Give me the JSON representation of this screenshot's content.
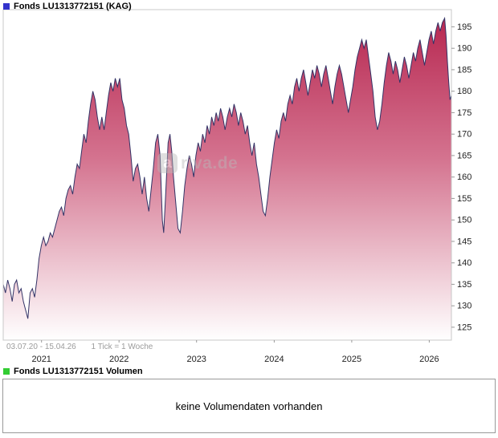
{
  "title": "Fonds LU1313772151 (KAG)",
  "price_chart": {
    "legend_label": "Fonds LU1313772151 (KAG)",
    "date_range": "03.07.20 - 15.04.26",
    "tick_info": "1 Tick = 1 Woche"
  },
  "volume_chart": {
    "legend_label": "Fonds LU1313772151 Volumen",
    "message": "keine Volumendaten vorhanden"
  },
  "watermark": {
    "logo_letter": "a",
    "text": "riva.de"
  },
  "colors": {
    "price_line": "#333366",
    "area_top": "#b6244e",
    "area_mid": "#d4738f",
    "area_bottom": "#ffffff",
    "frame": "#c8c8c8",
    "tick": "#999999",
    "axis_text": "#222222",
    "range_text": "#9b9b9b",
    "legend_price": "#3333cc",
    "legend_volume": "#33cc33"
  },
  "chart_data": {
    "type": "area",
    "title": "Fonds LU1313772151 (KAG)",
    "x_unit": "week",
    "date_start": "03.07.20",
    "date_end": "15.04.26",
    "tick_interval": "1 Tick = 1 Woche",
    "grid": false,
    "legend_position": "top-left",
    "ylim": [
      122,
      199
    ],
    "yticks": [
      125,
      130,
      135,
      140,
      145,
      150,
      155,
      160,
      165,
      170,
      175,
      180,
      185,
      190,
      195
    ],
    "xticks": [
      {
        "label": "2021",
        "f": 0.0854
      },
      {
        "label": "2022",
        "f": 0.2584
      },
      {
        "label": "2023",
        "f": 0.4313
      },
      {
        "label": "2024",
        "f": 0.6047
      },
      {
        "label": "2025",
        "f": 0.7776
      },
      {
        "label": "2026",
        "f": 0.9506
      }
    ],
    "series": [
      {
        "name": "Fonds LU1313772151 (KAG)",
        "points": [
          [
            0.0,
            135
          ],
          [
            0.005,
            133
          ],
          [
            0.01,
            136
          ],
          [
            0.015,
            134
          ],
          [
            0.02,
            131
          ],
          [
            0.025,
            135
          ],
          [
            0.03,
            136
          ],
          [
            0.035,
            133
          ],
          [
            0.04,
            134
          ],
          [
            0.045,
            131
          ],
          [
            0.05,
            129
          ],
          [
            0.055,
            127
          ],
          [
            0.06,
            133
          ],
          [
            0.065,
            134
          ],
          [
            0.07,
            132
          ],
          [
            0.075,
            136
          ],
          [
            0.08,
            141
          ],
          [
            0.085,
            144
          ],
          [
            0.09,
            146
          ],
          [
            0.095,
            144
          ],
          [
            0.1,
            145
          ],
          [
            0.105,
            147
          ],
          [
            0.11,
            146
          ],
          [
            0.115,
            148
          ],
          [
            0.12,
            150
          ],
          [
            0.125,
            152
          ],
          [
            0.13,
            153
          ],
          [
            0.135,
            151
          ],
          [
            0.14,
            155
          ],
          [
            0.145,
            157
          ],
          [
            0.15,
            158
          ],
          [
            0.155,
            156
          ],
          [
            0.16,
            160
          ],
          [
            0.165,
            163
          ],
          [
            0.17,
            162
          ],
          [
            0.175,
            166
          ],
          [
            0.18,
            170
          ],
          [
            0.185,
            168
          ],
          [
            0.19,
            173
          ],
          [
            0.195,
            177
          ],
          [
            0.2,
            180
          ],
          [
            0.205,
            178
          ],
          [
            0.21,
            174
          ],
          [
            0.215,
            171
          ],
          [
            0.22,
            174
          ],
          [
            0.225,
            171
          ],
          [
            0.23,
            175
          ],
          [
            0.235,
            179
          ],
          [
            0.24,
            182
          ],
          [
            0.245,
            180
          ],
          [
            0.25,
            183
          ],
          [
            0.255,
            181
          ],
          [
            0.26,
            183
          ],
          [
            0.265,
            178
          ],
          [
            0.27,
            176
          ],
          [
            0.275,
            172
          ],
          [
            0.28,
            170
          ],
          [
            0.285,
            165
          ],
          [
            0.29,
            159
          ],
          [
            0.295,
            162
          ],
          [
            0.3,
            163
          ],
          [
            0.305,
            160
          ],
          [
            0.31,
            156
          ],
          [
            0.315,
            160
          ],
          [
            0.32,
            155
          ],
          [
            0.325,
            152
          ],
          [
            0.33,
            157
          ],
          [
            0.335,
            162
          ],
          [
            0.34,
            168
          ],
          [
            0.345,
            170
          ],
          [
            0.35,
            165
          ],
          [
            0.355,
            150
          ],
          [
            0.358,
            147
          ],
          [
            0.362,
            155
          ],
          [
            0.368,
            168
          ],
          [
            0.372,
            170
          ],
          [
            0.376,
            166
          ],
          [
            0.38,
            160
          ],
          [
            0.385,
            154
          ],
          [
            0.39,
            148
          ],
          [
            0.395,
            147
          ],
          [
            0.4,
            152
          ],
          [
            0.405,
            158
          ],
          [
            0.41,
            162
          ],
          [
            0.415,
            165
          ],
          [
            0.42,
            163
          ],
          [
            0.425,
            160
          ],
          [
            0.43,
            165
          ],
          [
            0.435,
            168
          ],
          [
            0.44,
            166
          ],
          [
            0.445,
            170
          ],
          [
            0.45,
            168
          ],
          [
            0.455,
            172
          ],
          [
            0.46,
            170
          ],
          [
            0.465,
            174
          ],
          [
            0.47,
            172
          ],
          [
            0.475,
            175
          ],
          [
            0.48,
            173
          ],
          [
            0.485,
            176
          ],
          [
            0.49,
            174
          ],
          [
            0.495,
            171
          ],
          [
            0.5,
            174
          ],
          [
            0.505,
            176
          ],
          [
            0.51,
            174
          ],
          [
            0.515,
            177
          ],
          [
            0.52,
            175
          ],
          [
            0.525,
            172
          ],
          [
            0.53,
            175
          ],
          [
            0.535,
            173
          ],
          [
            0.54,
            170
          ],
          [
            0.545,
            172
          ],
          [
            0.55,
            168
          ],
          [
            0.555,
            165
          ],
          [
            0.56,
            168
          ],
          [
            0.565,
            163
          ],
          [
            0.57,
            160
          ],
          [
            0.575,
            156
          ],
          [
            0.58,
            152
          ],
          [
            0.585,
            151
          ],
          [
            0.59,
            155
          ],
          [
            0.595,
            160
          ],
          [
            0.6,
            164
          ],
          [
            0.605,
            168
          ],
          [
            0.61,
            171
          ],
          [
            0.615,
            169
          ],
          [
            0.62,
            173
          ],
          [
            0.625,
            175
          ],
          [
            0.63,
            173
          ],
          [
            0.635,
            177
          ],
          [
            0.64,
            179
          ],
          [
            0.645,
            177
          ],
          [
            0.65,
            181
          ],
          [
            0.655,
            183
          ],
          [
            0.66,
            180
          ],
          [
            0.665,
            183
          ],
          [
            0.67,
            185
          ],
          [
            0.675,
            182
          ],
          [
            0.68,
            179
          ],
          [
            0.685,
            182
          ],
          [
            0.69,
            185
          ],
          [
            0.695,
            183
          ],
          [
            0.7,
            186
          ],
          [
            0.705,
            184
          ],
          [
            0.71,
            181
          ],
          [
            0.715,
            184
          ],
          [
            0.72,
            186
          ],
          [
            0.725,
            183
          ],
          [
            0.73,
            180
          ],
          [
            0.735,
            177
          ],
          [
            0.74,
            181
          ],
          [
            0.745,
            184
          ],
          [
            0.75,
            186
          ],
          [
            0.755,
            184
          ],
          [
            0.76,
            181
          ],
          [
            0.765,
            178
          ],
          [
            0.77,
            175
          ],
          [
            0.775,
            178
          ],
          [
            0.78,
            181
          ],
          [
            0.785,
            185
          ],
          [
            0.79,
            188
          ],
          [
            0.795,
            190
          ],
          [
            0.8,
            192
          ],
          [
            0.805,
            190
          ],
          [
            0.81,
            192
          ],
          [
            0.815,
            188
          ],
          [
            0.82,
            184
          ],
          [
            0.825,
            180
          ],
          [
            0.83,
            174
          ],
          [
            0.835,
            171
          ],
          [
            0.84,
            173
          ],
          [
            0.845,
            177
          ],
          [
            0.85,
            182
          ],
          [
            0.855,
            186
          ],
          [
            0.86,
            189
          ],
          [
            0.865,
            187
          ],
          [
            0.87,
            184
          ],
          [
            0.875,
            187
          ],
          [
            0.88,
            185
          ],
          [
            0.885,
            182
          ],
          [
            0.89,
            185
          ],
          [
            0.895,
            188
          ],
          [
            0.9,
            186
          ],
          [
            0.905,
            183
          ],
          [
            0.91,
            186
          ],
          [
            0.915,
            189
          ],
          [
            0.92,
            187
          ],
          [
            0.925,
            190
          ],
          [
            0.93,
            192
          ],
          [
            0.935,
            189
          ],
          [
            0.94,
            186
          ],
          [
            0.945,
            189
          ],
          [
            0.95,
            192
          ],
          [
            0.955,
            194
          ],
          [
            0.96,
            191
          ],
          [
            0.965,
            194
          ],
          [
            0.97,
            196
          ],
          [
            0.975,
            194
          ],
          [
            0.98,
            196
          ],
          [
            0.985,
            197
          ],
          [
            0.988,
            193
          ],
          [
            0.991,
            187
          ],
          [
            0.994,
            182
          ],
          [
            0.997,
            178
          ],
          [
            1.0,
            179
          ]
        ]
      }
    ]
  }
}
